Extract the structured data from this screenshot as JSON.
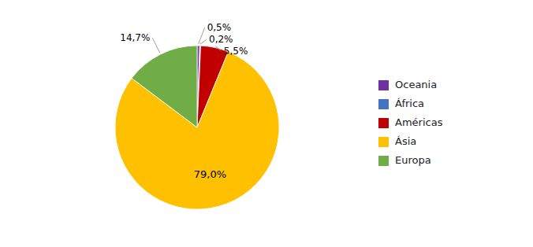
{
  "chart_data": {
    "type": "pie",
    "categories": [
      "Oceania",
      "África",
      "Américas",
      "Ásia",
      "Europa"
    ],
    "values": [
      0.5,
      0.2,
      5.5,
      79.0,
      14.7
    ],
    "value_labels": [
      "0,5%",
      "0,2%",
      "5,5%",
      "79,0%",
      "14,7%"
    ],
    "colors": [
      "#7030A0",
      "#4472C4",
      "#C00000",
      "#FFC000",
      "#70AD47"
    ],
    "data_labels": true,
    "legend": "right"
  }
}
